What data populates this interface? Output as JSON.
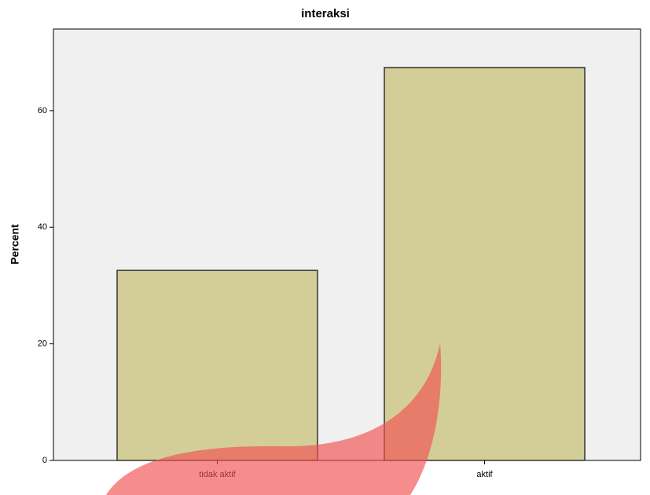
{
  "chart_data": {
    "type": "bar",
    "title": "interaksi",
    "y_label": "Percent",
    "categories": [
      "tidak aktif",
      "aktif"
    ],
    "values": [
      32.6,
      67.4
    ],
    "color": "#d3ce97",
    "ylim": [
      0,
      74
    ],
    "yticks": [
      0,
      20,
      40,
      60
    ]
  }
}
